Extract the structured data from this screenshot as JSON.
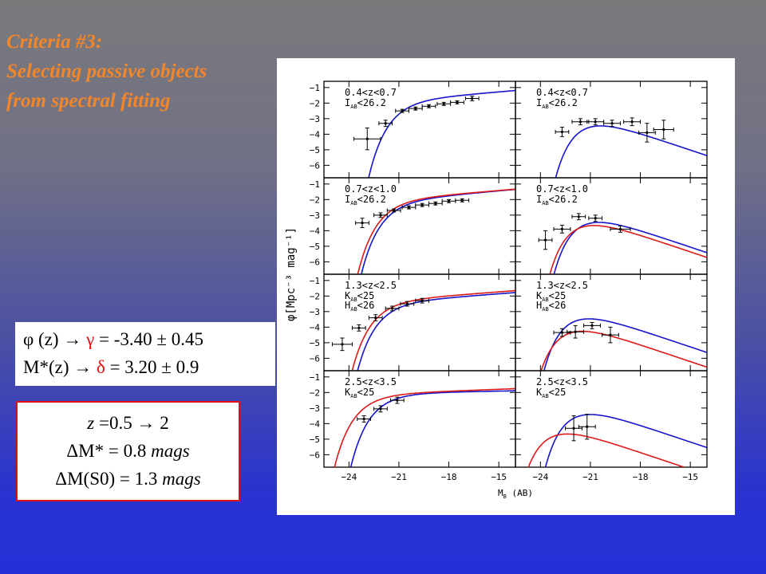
{
  "title_lines": [
    "Criteria #3:",
    "Selecting passive objects",
    "from spectral fitting"
  ],
  "equations": {
    "line1": {
      "lhs": "φ (z)",
      "arrow": "→",
      "sym": "γ",
      "rhs": "= -3.40 ± 0.45"
    },
    "line2": {
      "lhs": "M*(z)",
      "arrow": "→",
      "sym": "δ",
      "rhs": "= 3.20 ± 0.9"
    }
  },
  "delta_box": {
    "line1": {
      "z": "z",
      "text": " =0.5 ",
      "arrow": "→",
      "end": " 2"
    },
    "line2": {
      "prefix": "ΔM* = 0.8 ",
      "unit": "mags"
    },
    "line3": {
      "prefix": "ΔM(S0) = 1.3 ",
      "unit": "mags"
    }
  },
  "chart_data": {
    "type": "line",
    "grid_layout": "4 rows × 2 columns",
    "xlabel": "M",
    "xlabel_sub": "B",
    "xlabel_unit": "(AB)",
    "ylabel": "φ[Mpc⁻³ mag⁻¹]",
    "xlim": [
      -25.5,
      -14.0
    ],
    "xticks": [
      -24,
      -21,
      -18,
      -15
    ],
    "ylim": [
      -6.8,
      -0.6
    ],
    "yticks": [
      -1,
      -2,
      -3,
      -4,
      -5,
      -6
    ],
    "colors": {
      "blue": "#1515cc",
      "red": "#dd1a1a",
      "points": "#000000"
    },
    "panels": [
      {
        "row": 0,
        "col": 0,
        "label1": "0.4<z<0.7",
        "label2": "I",
        "label2_sub": "AB",
        "label2_rest": "<26.2",
        "curves": [
          {
            "color": "blue",
            "phi": -1.7,
            "mstar": -20.2,
            "alpha": -1.22
          }
        ],
        "points": [
          {
            "x": -22.9,
            "y": -4.3,
            "xe": 0.8,
            "ye": 0.7
          },
          {
            "x": -21.8,
            "y": -3.3,
            "xe": 0.4,
            "ye": 0.2
          },
          {
            "x": -20.8,
            "y": -2.5,
            "xe": 0.4,
            "ye": 0.1
          },
          {
            "x": -20.0,
            "y": -2.35,
            "xe": 0.4,
            "ye": 0.1
          },
          {
            "x": -19.2,
            "y": -2.2,
            "xe": 0.4,
            "ye": 0.1
          },
          {
            "x": -18.3,
            "y": -2.05,
            "xe": 0.4,
            "ye": 0.1
          },
          {
            "x": -17.5,
            "y": -1.95,
            "xe": 0.4,
            "ye": 0.1
          },
          {
            "x": -16.6,
            "y": -1.7,
            "xe": 0.4,
            "ye": 0.15
          }
        ]
      },
      {
        "row": 0,
        "col": 1,
        "label1": "0.4<z<0.7",
        "label2": "I",
        "label2_sub": "AB",
        "label2_rest": "<26.2",
        "curves": [
          {
            "color": "blue",
            "phi": -3.0,
            "mstar": -20.5,
            "alpha": -0.1
          }
        ],
        "points": [
          {
            "x": -22.7,
            "y": -3.85,
            "xe": 0.4,
            "ye": 0.3
          },
          {
            "x": -21.6,
            "y": -3.2,
            "xe": 0.5,
            "ye": 0.2
          },
          {
            "x": -20.7,
            "y": -3.2,
            "xe": 0.5,
            "ye": 0.2
          },
          {
            "x": -19.7,
            "y": -3.3,
            "xe": 0.5,
            "ye": 0.2
          },
          {
            "x": -18.5,
            "y": -3.2,
            "xe": 0.5,
            "ye": 0.25
          },
          {
            "x": -17.6,
            "y": -3.9,
            "xe": 0.5,
            "ye": 0.6
          },
          {
            "x": -16.6,
            "y": -3.7,
            "xe": 0.6,
            "ye": 0.6
          }
        ]
      },
      {
        "row": 1,
        "col": 0,
        "label1": "0.7<z<1.0",
        "label2": "I",
        "label2_sub": "AB",
        "label2_rest": "<26.2",
        "curves": [
          {
            "color": "blue",
            "phi": -1.95,
            "mstar": -20.7,
            "alpha": -1.24
          },
          {
            "color": "red",
            "phi": -1.9,
            "mstar": -20.9,
            "alpha": -1.22
          }
        ],
        "points": [
          {
            "x": -23.2,
            "y": -3.5,
            "xe": 0.4,
            "ye": 0.3
          },
          {
            "x": -22.1,
            "y": -3.0,
            "xe": 0.4,
            "ye": 0.15
          },
          {
            "x": -21.3,
            "y": -2.7,
            "xe": 0.4,
            "ye": 0.1
          },
          {
            "x": -20.4,
            "y": -2.5,
            "xe": 0.4,
            "ye": 0.1
          },
          {
            "x": -19.6,
            "y": -2.35,
            "xe": 0.4,
            "ye": 0.1
          },
          {
            "x": -18.8,
            "y": -2.25,
            "xe": 0.4,
            "ye": 0.1
          },
          {
            "x": -18.0,
            "y": -2.1,
            "xe": 0.4,
            "ye": 0.1
          },
          {
            "x": -17.2,
            "y": -2.05,
            "xe": 0.4,
            "ye": 0.1
          }
        ]
      },
      {
        "row": 1,
        "col": 1,
        "label1": "0.7<z<1.0",
        "label2": "I",
        "label2_sub": "AB",
        "label2_rest": "<26.2",
        "curves": [
          {
            "color": "blue",
            "phi": -3.0,
            "mstar": -20.6,
            "alpha": -0.1
          },
          {
            "color": "red",
            "phi": -3.2,
            "mstar": -20.9,
            "alpha": -0.1
          }
        ],
        "points": [
          {
            "x": -23.7,
            "y": -4.6,
            "xe": 0.4,
            "ye": 0.6
          },
          {
            "x": -22.7,
            "y": -3.9,
            "xe": 0.5,
            "ye": 0.25
          },
          {
            "x": -21.7,
            "y": -3.1,
            "xe": 0.4,
            "ye": 0.2
          },
          {
            "x": -20.7,
            "y": -3.2,
            "xe": 0.4,
            "ye": 0.2
          },
          {
            "x": -19.2,
            "y": -3.9,
            "xe": 0.6,
            "ye": 0.2
          }
        ]
      },
      {
        "row": 2,
        "col": 0,
        "label1": "1.3<z<2.5",
        "label2": "K",
        "label2_sub": "AB",
        "label2_rest": "<25",
        "label3": "H",
        "label3_sub": "AB",
        "label3_rest": "<26",
        "curves": [
          {
            "color": "blue",
            "phi": -2.3,
            "mstar": -21.0,
            "alpha": -1.2
          },
          {
            "color": "red",
            "phi": -2.2,
            "mstar": -21.3,
            "alpha": -1.2
          }
        ],
        "points": [
          {
            "x": -24.4,
            "y": -5.1,
            "xe": 0.6,
            "ye": 0.4
          },
          {
            "x": -23.4,
            "y": -4.05,
            "xe": 0.4,
            "ye": 0.2
          },
          {
            "x": -22.4,
            "y": -3.4,
            "xe": 0.4,
            "ye": 0.2
          },
          {
            "x": -21.4,
            "y": -2.8,
            "xe": 0.4,
            "ye": 0.15
          },
          {
            "x": -20.5,
            "y": -2.5,
            "xe": 0.4,
            "ye": 0.15
          },
          {
            "x": -19.6,
            "y": -2.3,
            "xe": 0.4,
            "ye": 0.15
          }
        ]
      },
      {
        "row": 2,
        "col": 1,
        "label1": "1.3<z<2.5",
        "label2": "K",
        "label2_sub": "AB",
        "label2_rest": "<25",
        "label3": "H",
        "label3_sub": "AB",
        "label3_rest": "<26",
        "curves": [
          {
            "color": "blue",
            "phi": -3.0,
            "mstar": -21.2,
            "alpha": -0.1
          },
          {
            "color": "red",
            "phi": -3.8,
            "mstar": -21.6,
            "alpha": -0.1
          }
        ],
        "points": [
          {
            "x": -22.7,
            "y": -4.35,
            "xe": 0.5,
            "ye": 0.25
          },
          {
            "x": -21.9,
            "y": -4.3,
            "xe": 0.5,
            "ye": 0.4
          },
          {
            "x": -20.9,
            "y": -3.9,
            "xe": 0.5,
            "ye": 0.2
          },
          {
            "x": -19.8,
            "y": -4.5,
            "xe": 0.5,
            "ye": 0.5
          }
        ]
      },
      {
        "row": 3,
        "col": 0,
        "label1": "2.5<z<3.5",
        "label2": "K",
        "label2_sub": "AB",
        "label2_rest": "<25",
        "curves": [
          {
            "color": "blue",
            "phi": -2.0,
            "mstar": -21.3,
            "alpha": -1.05
          },
          {
            "color": "red",
            "phi": -2.05,
            "mstar": -22.3,
            "alpha": -1.1
          }
        ],
        "points": [
          {
            "x": -23.1,
            "y": -3.7,
            "xe": 0.4,
            "ye": 0.2
          },
          {
            "x": -22.1,
            "y": -3.05,
            "xe": 0.4,
            "ye": 0.2
          },
          {
            "x": -21.1,
            "y": -2.5,
            "xe": 0.4,
            "ye": 0.2
          }
        ]
      },
      {
        "row": 3,
        "col": 1,
        "label1": "2.5<z<3.5",
        "label2": "K",
        "label2_sub": "AB",
        "label2_rest": "<25",
        "curves": [
          {
            "color": "blue",
            "phi": -2.95,
            "mstar": -21.1,
            "alpha": -0.1
          },
          {
            "color": "red",
            "phi": -4.2,
            "mstar": -22.5,
            "alpha": -0.1
          }
        ],
        "points": [
          {
            "x": -22.0,
            "y": -4.3,
            "xe": 0.5,
            "ye": 0.8
          },
          {
            "x": -21.2,
            "y": -4.2,
            "xe": 0.5,
            "ye": 0.8
          }
        ]
      }
    ]
  }
}
